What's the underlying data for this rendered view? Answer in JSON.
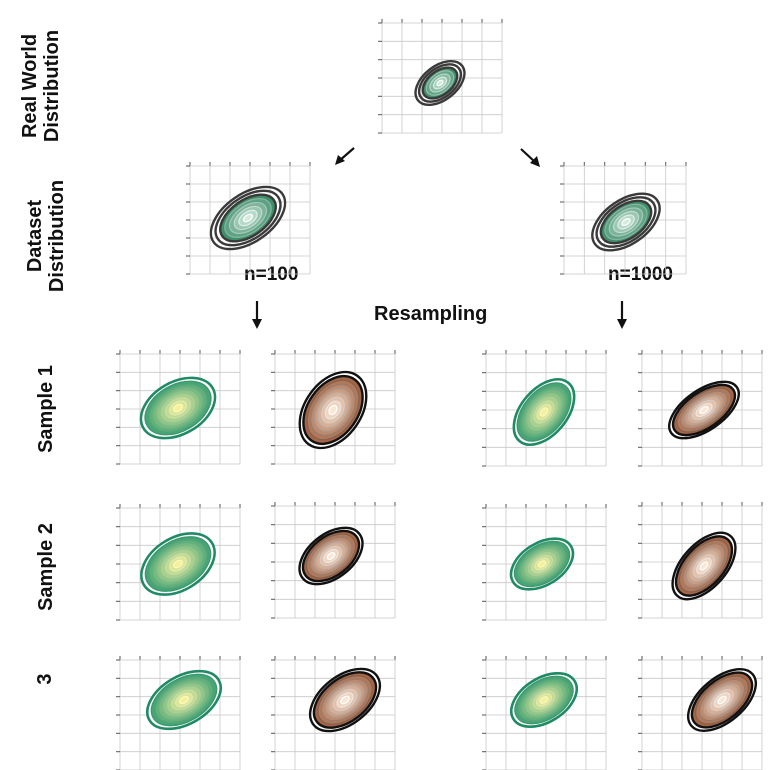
{
  "row_labels": {
    "real_world": [
      "Real World",
      "Distribution"
    ],
    "dataset": [
      "Dataset",
      "Distribution"
    ],
    "sample1": "Sample 1",
    "sample2": "Sample 2",
    "sample3": "3"
  },
  "labels": {
    "n_small": "n=100",
    "n_large": "n=1000",
    "resampling": "Resampling"
  },
  "colors": {
    "grid": "#c8c8c8",
    "grey_contour": "#3a3a3a",
    "green_fill": "#2e9a6e",
    "green_edge": "#1f8a64",
    "yellow_core": "#f4f19a",
    "copper_fill": "#c4774a",
    "copper_core": "#fbe6d2",
    "black_contour": "#111111"
  }
}
